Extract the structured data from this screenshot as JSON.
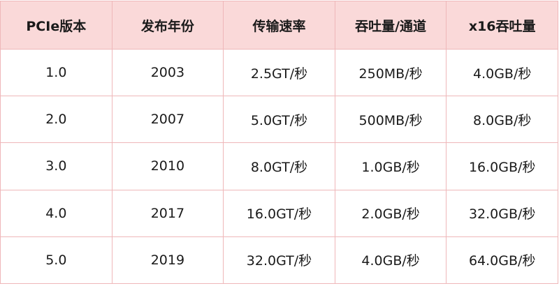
{
  "table": {
    "headers": [
      "PCIe版本",
      "发布年份",
      "传输速率",
      "吞吐量/通道",
      "x16吞吐量"
    ],
    "rows": [
      [
        "1.0",
        "2003",
        "2.5GT/秒",
        "250MB/秒",
        "4.0GB/秒"
      ],
      [
        "2.0",
        "2007",
        "5.0GT/秒",
        "500MB/秒",
        "8.0GB/秒"
      ],
      [
        "3.0",
        "2010",
        "8.0GT/秒",
        "1.0GB/秒",
        "16.0GB/秒"
      ],
      [
        "4.0",
        "2017",
        "16.0GT/秒",
        "2.0GB/秒",
        "32.0GB/秒"
      ],
      [
        "5.0",
        "2019",
        "32.0GT/秒",
        "4.0GB/秒",
        "64.0GB/秒"
      ]
    ]
  }
}
